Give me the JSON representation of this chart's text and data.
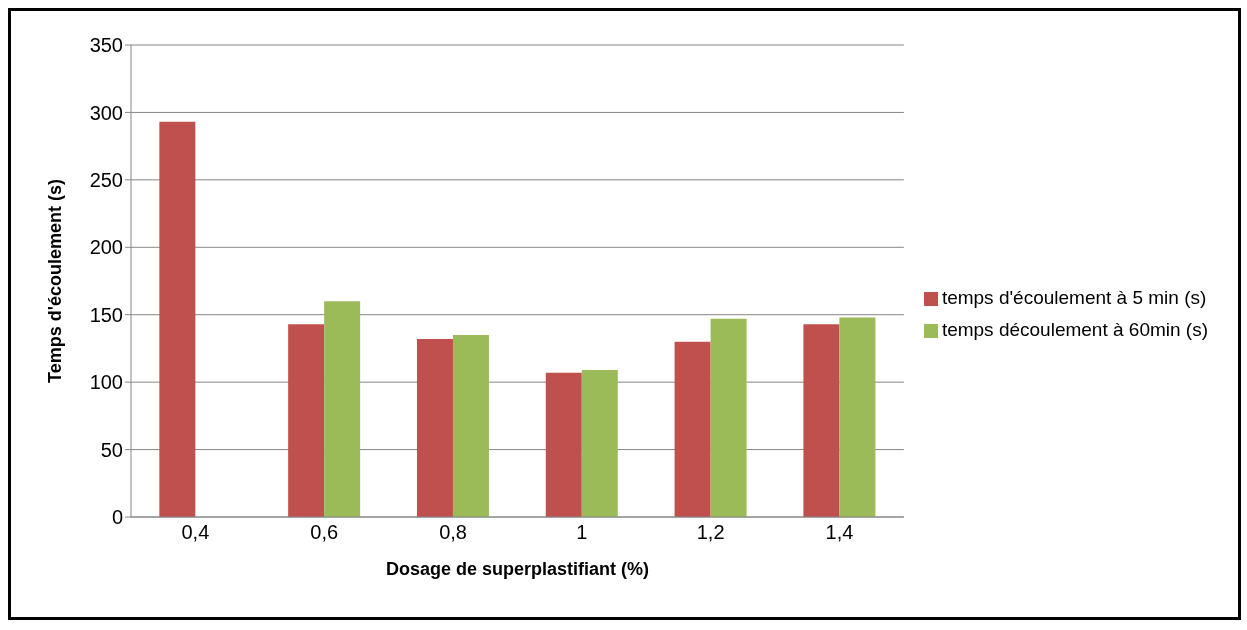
{
  "chart_data": {
    "type": "bar",
    "xlabel": "Dosage de superplastifiant (%)",
    "ylabel": "Temps d'écoulement (s)",
    "categories": [
      "0,4",
      "0,6",
      "0,8",
      "1",
      "1,2",
      "1,4"
    ],
    "series": [
      {
        "name": "temps d'écoulement à 5 min (s)",
        "color": "#c0504d",
        "values": [
          293,
          143,
          132,
          107,
          130,
          143
        ]
      },
      {
        "name": "temps découlement à 60min (s)",
        "color": "#9bbb59",
        "values": [
          null,
          160,
          135,
          109,
          147,
          148
        ]
      }
    ],
    "ylim": [
      0,
      350
    ],
    "yticks": [
      0,
      50,
      100,
      150,
      200,
      250,
      300,
      350
    ],
    "grid": "y",
    "legend": "right"
  }
}
